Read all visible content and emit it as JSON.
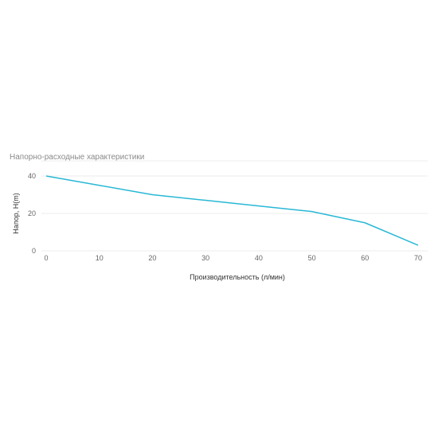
{
  "chart_data": {
    "type": "line",
    "title": "Напорно-расходные характеристики",
    "xlabel": "Производительность (л/мин)",
    "ylabel": "Напор, H(m)",
    "x": [
      0,
      10,
      20,
      30,
      40,
      50,
      60,
      70
    ],
    "x_ticks": [
      "0",
      "10",
      "20",
      "30",
      "40",
      "50",
      "60",
      "70"
    ],
    "y_ticks": [
      "0",
      "20",
      "40"
    ],
    "xlim": [
      0,
      70
    ],
    "ylim": [
      0,
      40
    ],
    "grid": true,
    "legend": "none",
    "series": [
      {
        "color": "#29b8d6",
        "values": [
          40,
          35,
          30,
          27,
          24,
          21,
          15,
          3
        ]
      }
    ]
  }
}
